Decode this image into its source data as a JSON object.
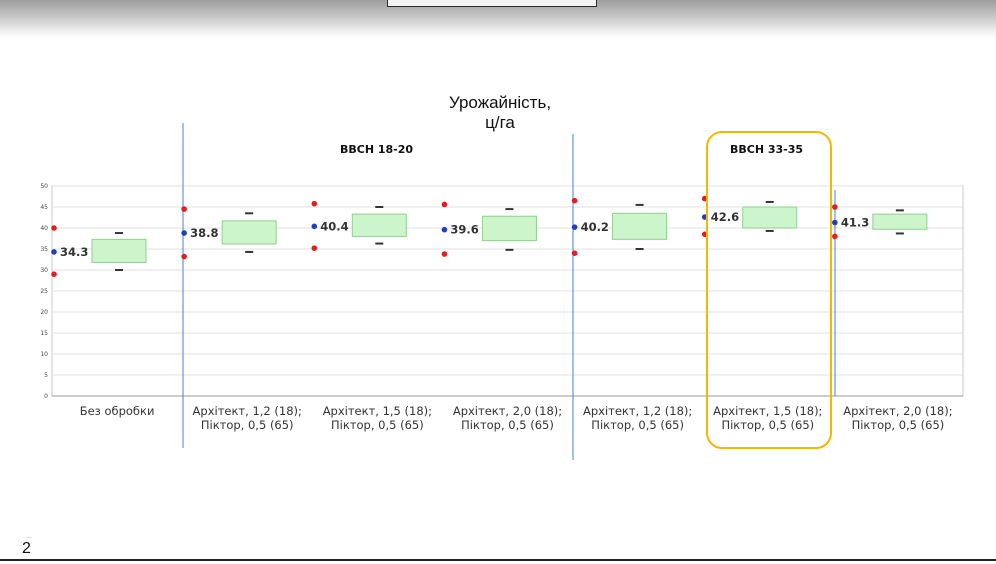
{
  "chart_data": {
    "type": "box",
    "title": "Урожайність,\nц/га",
    "ylim": [
      0,
      50
    ],
    "yticks": [
      0,
      5,
      10,
      15,
      20,
      25,
      30,
      35,
      40,
      45,
      50
    ],
    "grid": true,
    "stage_labels": [
      "BBCH 18-20",
      "BBCH 33-35"
    ],
    "categories": [
      "Без обробки",
      "Архітект, 1,2 (18);\nПіктор, 0,5 (65)",
      "Архітект, 1,5 (18);\nПіктор, 0,5 (65)",
      "Архітект, 2,0 (18);\nПіктор, 0,5 (65)",
      "Архітект, 1,2 (18);\nПіктор, 0,5 (65)",
      "Архітект, 1,5 (18);\nПіктор, 0,5 (65)",
      "Архітект, 2,0 (18);\nПіктор, 0,5 (65)"
    ],
    "mean_labels": [
      "34.3",
      "38.8",
      "40.4",
      "39.6",
      "40.2",
      "42.6",
      "41.3"
    ],
    "means": [
      34.3,
      38.8,
      40.4,
      39.6,
      40.2,
      42.6,
      41.3
    ],
    "points_high": [
      40.0,
      44.5,
      45.8,
      45.6,
      46.5,
      47.0,
      45.0
    ],
    "points_low": [
      29.0,
      33.2,
      35.2,
      33.8,
      34.0,
      38.5,
      38.0
    ],
    "box_low": [
      31.8,
      36.2,
      38.0,
      37.0,
      37.3,
      40.0,
      39.7
    ],
    "box_high": [
      37.3,
      41.7,
      43.3,
      42.8,
      43.5,
      45.0,
      43.3
    ],
    "whisker_low": [
      30.0,
      34.3,
      36.3,
      34.8,
      35.0,
      39.3,
      38.7
    ],
    "whisker_high": [
      38.8,
      43.5,
      45.0,
      44.5,
      45.5,
      46.2,
      44.2
    ]
  },
  "colors": {
    "mean_point": "#1f3fbf",
    "extreme_point": "#e02020",
    "box_fill": "#ccf5cc",
    "box_stroke": "#8fd08f",
    "separator": "#4a7fd6",
    "highlight": "#f5b800"
  },
  "footer": {
    "slide_number": "2",
    "slide_number_sup": "…"
  }
}
